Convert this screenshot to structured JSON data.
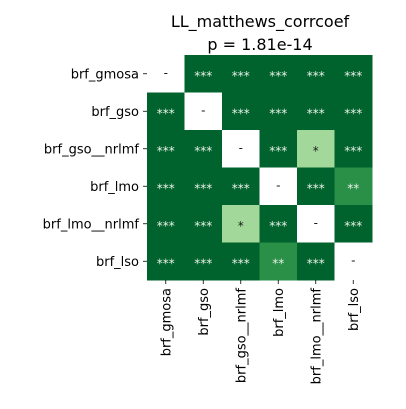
{
  "chart_data": {
    "type": "heatmap",
    "title": "LL_matthews_corrcoef",
    "subtitle": "p = 1.81e-14",
    "row_labels": [
      "brf_gmosa",
      "brf_gso",
      "brf_gso__nrlmf",
      "brf_lmo",
      "brf_lmo__nrlmf",
      "brf_lso"
    ],
    "col_labels": [
      "brf_gmosa",
      "brf_gso",
      "brf_gso__nrlmf",
      "brf_lmo",
      "brf_lmo__nrlmf",
      "brf_lso"
    ],
    "cells": [
      [
        "-",
        "***",
        "***",
        "***",
        "***",
        "***"
      ],
      [
        "***",
        "-",
        "***",
        "***",
        "***",
        "***"
      ],
      [
        "***",
        "***",
        "-",
        "***",
        "*",
        "***"
      ],
      [
        "***",
        "***",
        "***",
        "-",
        "***",
        "**"
      ],
      [
        "***",
        "***",
        "*",
        "***",
        "-",
        "***"
      ],
      [
        "***",
        "***",
        "***",
        "**",
        "***",
        "-"
      ]
    ],
    "colors": {
      "***": "#00622c",
      "**": "#2a8f47",
      "*": "#a2d99a",
      "-": "#ffffff"
    },
    "text_colors": {
      "light": "#e9f3e9",
      "dark": "#1a1a1a"
    },
    "grid": false,
    "legend": "none"
  }
}
